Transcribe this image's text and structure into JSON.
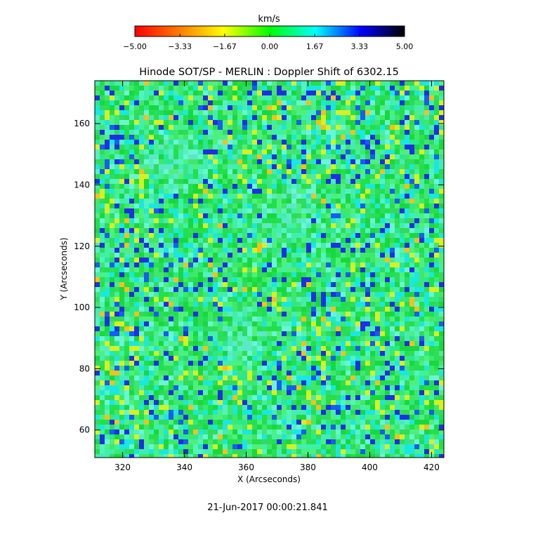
{
  "chart_data": {
    "type": "heatmap",
    "title": "Hinode SOT/SP - MERLIN : Doppler Shift of 6302.15",
    "xlabel": "X (Arcseconds)",
    "ylabel": "Y (Arcseconds)",
    "xlim": [
      311,
      424
    ],
    "ylim": [
      51,
      174
    ],
    "x_ticks": [
      "320",
      "340",
      "360",
      "380",
      "400",
      "420"
    ],
    "x_tick_values": [
      320,
      340,
      360,
      380,
      400,
      420
    ],
    "y_ticks": [
      "60",
      "80",
      "100",
      "120",
      "140",
      "160"
    ],
    "y_tick_values": [
      60,
      80,
      100,
      120,
      140,
      160
    ],
    "colorbar": {
      "label": "km/s",
      "range": [
        -5.0,
        5.0
      ],
      "tick_labels": [
        "−5.00",
        "−3.33",
        "−1.67",
        "0.00",
        "1.67",
        "3.33",
        "5.00"
      ],
      "tick_values": [
        -5.0,
        -3.33,
        -1.67,
        0.0,
        1.67,
        3.33,
        5.0
      ],
      "colors": [
        "#ff0000",
        "#ff8000",
        "#ffff00",
        "#00ff00",
        "#00ffff",
        "#0000ff",
        "#000000"
      ]
    },
    "timestamp": "21-Jun-2017 00:00:21.841"
  }
}
